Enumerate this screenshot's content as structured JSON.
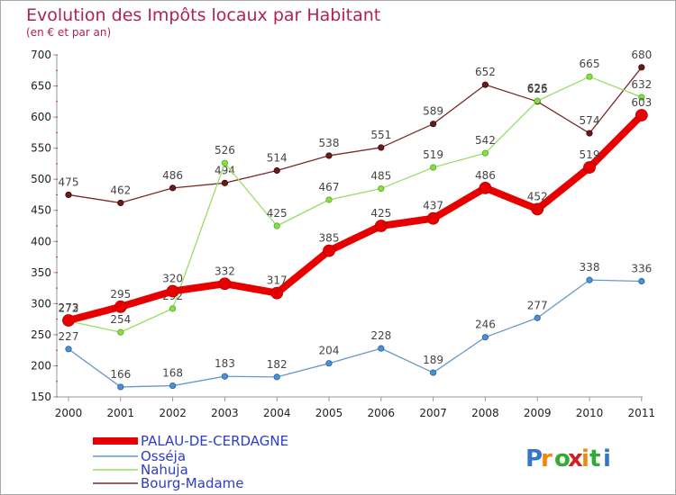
{
  "chart_data": {
    "type": "line",
    "title": "Evolution des Impôts locaux par Habitant",
    "subtitle": "(en € et par an)",
    "xlabel": "",
    "ylabel": "",
    "x": [
      "2000",
      "2001",
      "2002",
      "2003",
      "2004",
      "2005",
      "2006",
      "2007",
      "2008",
      "2009",
      "2010",
      "2011"
    ],
    "yticks": [
      150,
      200,
      250,
      300,
      350,
      400,
      450,
      500,
      550,
      600,
      650,
      700
    ],
    "ylim": [
      150,
      700
    ],
    "grid": false,
    "legend_position": "bottom-left",
    "series": [
      {
        "name": "PALAU-DE-CERDAGNE",
        "color": "#e80000",
        "values": [
          273,
          295,
          320,
          332,
          317,
          385,
          425,
          437,
          486,
          452,
          519,
          603
        ],
        "labels": [
          "273",
          "295",
          "320",
          "332",
          "317",
          "385",
          "425",
          "437",
          "486",
          "452",
          "519",
          "603"
        ]
      },
      {
        "name": "Osséja",
        "color": "#6699cc",
        "values": [
          227,
          166,
          168,
          183,
          182,
          204,
          228,
          189,
          246,
          277,
          338,
          336
        ],
        "labels": [
          "227",
          "166",
          "168",
          "183",
          "182",
          "204",
          "228",
          "189",
          "246",
          "277",
          "338",
          "336"
        ]
      },
      {
        "name": "Nahuja",
        "color": "#99dd66",
        "values": [
          272,
          254,
          292,
          526,
          425,
          467,
          485,
          519,
          542,
          626,
          665,
          632
        ],
        "labels": [
          "272",
          "254",
          "292",
          "526",
          "425",
          "467",
          "485",
          "519",
          "542",
          "626",
          "665",
          "632"
        ]
      },
      {
        "name": "Bourg-Madame",
        "color": "#7a2a2a",
        "values": [
          475,
          462,
          486,
          494,
          514,
          538,
          551,
          589,
          652,
          625,
          574,
          680
        ],
        "labels": [
          "475",
          "462",
          "486",
          "494",
          "514",
          "538",
          "551",
          "589",
          "652",
          "625",
          "574",
          "680"
        ]
      }
    ]
  },
  "logo": {
    "text": "Proxiti",
    "colors": [
      "#3377cc",
      "#ee8811",
      "#33aa33",
      "#cc2222",
      "#ee8811",
      "#33aa33",
      "#3377cc"
    ]
  }
}
